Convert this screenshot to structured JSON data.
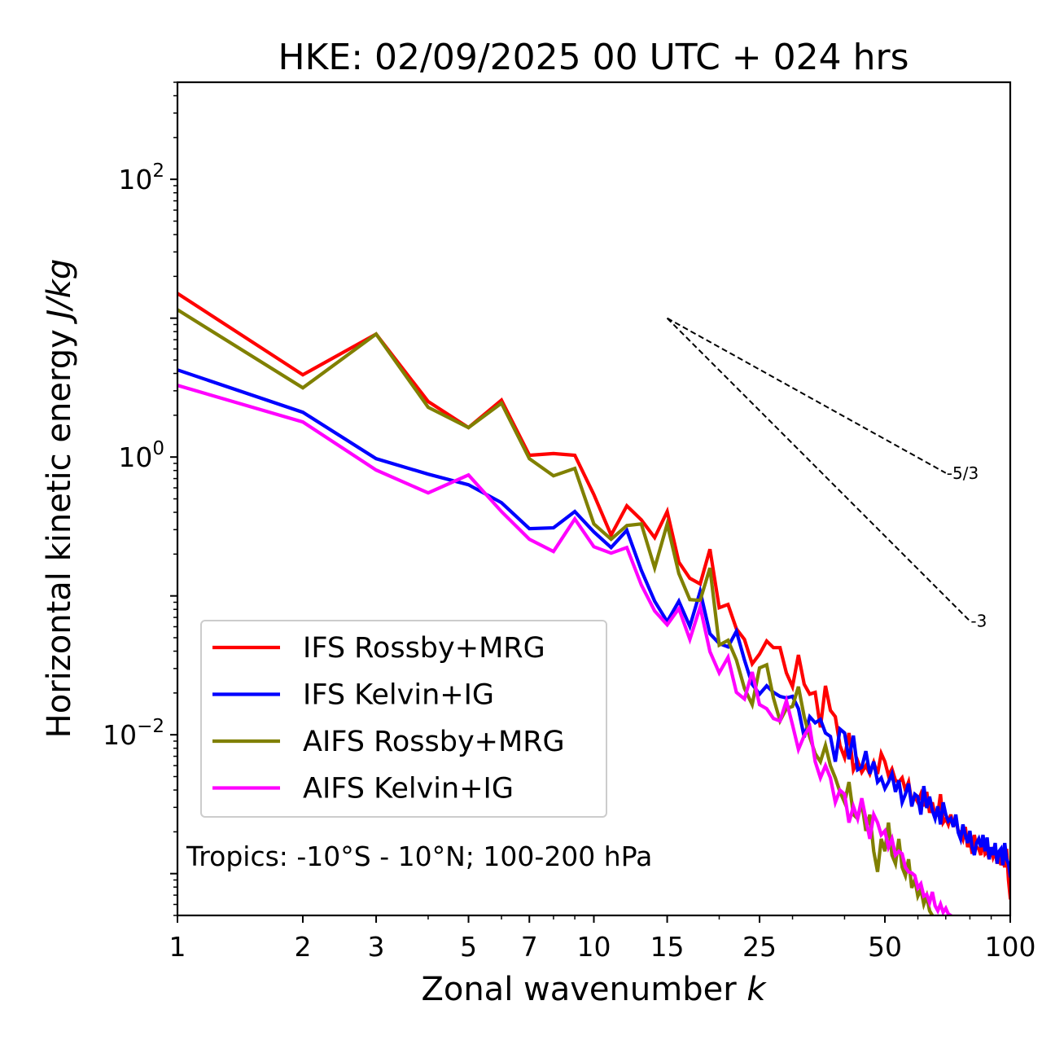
{
  "chart_data": {
    "type": "line",
    "title": "HKE: 02/09/2025 00 UTC + 024 hrs",
    "xlabel": "Zonal wavenumber",
    "xlabel_italic": "k",
    "ylabel": "Horizontal kinetic energy",
    "ylabel_italic": "J/kg",
    "xscale": "log",
    "yscale": "log",
    "xlim": [
      1,
      100
    ],
    "ylim": [
      0.0005,
      500
    ],
    "grid": false,
    "legend_position": "lower-left",
    "x_ticks": [
      1,
      2,
      3,
      5,
      7,
      10,
      15,
      25,
      50,
      100
    ],
    "x_tick_labels": [
      "1",
      "2",
      "3",
      "5",
      "7",
      "10",
      "15",
      "25",
      "50",
      "100"
    ],
    "x_minor_ticks": [
      4,
      6,
      8,
      9,
      20,
      30,
      40,
      60,
      70,
      80,
      90
    ],
    "y_ticks": [
      {
        "value": 100,
        "base": "10",
        "exp": "2"
      },
      {
        "value": 1,
        "base": "10",
        "exp": "0"
      },
      {
        "value": 0.01,
        "base": "10",
        "exp": "−2"
      }
    ],
    "annotation": "Tropics: -10°S - 10°N; 100-200 hPa",
    "reference_lines": [
      {
        "label": "-5/3",
        "slope": -1.6667,
        "k_start": 15,
        "k_end": 70,
        "e_start": 10,
        "style": "dashed",
        "color": "#000000"
      },
      {
        "label": "-3",
        "slope": -3,
        "k_start": 15,
        "k_end": 80,
        "e_start": 10,
        "style": "dashed",
        "color": "#000000"
      }
    ],
    "series": [
      {
        "name": "IFS Rossby+MRG",
        "color": "#ff0000",
        "k_start": 1,
        "values": [
          15.1,
          3.91,
          7.68,
          2.51,
          1.63,
          2.57,
          1.03,
          1.06,
          1.03,
          0.537,
          0.274,
          0.445,
          0.353,
          0.263,
          0.405,
          0.175,
          0.134,
          0.122,
          0.217,
          0.0822,
          0.0868,
          0.0579,
          0.0486,
          0.0324,
          0.0381,
          0.0473,
          0.0424,
          0.0424,
          0.0279,
          0.0222,
          0.0376,
          0.0231,
          0.0196,
          0.0202,
          0.0113,
          0.0225,
          0.015,
          0.0135,
          0.00839,
          0.00685,
          0.0103,
          0.00559,
          0.00649,
          0.00537,
          0.00599,
          0.00523,
          0.00632,
          0.00523,
          0.00733,
          0.0064,
          0.00509,
          0.00567,
          0.00469,
          0.00457,
          0.00489,
          0.00399,
          0.00457,
          0.00326,
          0.00358,
          0.00326,
          0.00373,
          0.00305,
          0.00388,
          0.00274,
          0.00326,
          0.00259,
          0.00266,
          0.00373,
          0.00233,
          0.00249,
          0.00226,
          0.00266,
          0.00217,
          0.00249,
          0.00203,
          0.00198,
          0.00178,
          0.00217,
          0.00155,
          0.00178,
          0.00139,
          0.0019,
          0.00155,
          0.00151,
          0.00136,
          0.00178,
          0.00139,
          0.00145,
          0.00127,
          0.00155,
          0.00132,
          0.00145,
          0.00118,
          0.00136,
          0.00115,
          0.00127,
          0.00111,
          0.00151,
          0.000904,
          0.000671
        ]
      },
      {
        "name": "IFS Kelvin+IG",
        "color": "#0000ff",
        "k_start": 1,
        "values": [
          4.24,
          2.1,
          0.973,
          0.753,
          0.632,
          0.469,
          0.305,
          0.309,
          0.405,
          0.289,
          0.223,
          0.297,
          0.153,
          0.0916,
          0.0653,
          0.0916,
          0.0603,
          0.108,
          0.0534,
          0.0454,
          0.043,
          0.0556,
          0.0346,
          0.0231,
          0.0196,
          0.0225,
          0.0202,
          0.0189,
          0.0184,
          0.0189,
          0.0154,
          0.0096,
          0.0135,
          0.0122,
          0.0129,
          0.0103,
          0.00973,
          0.0064,
          0.011,
          0.0103,
          0.00667,
          0.00986,
          0.00559,
          0.00583,
          0.00763,
          0.00523,
          0.0064,
          0.00457,
          0.00489,
          0.0041,
          0.00457,
          0.00523,
          0.00388,
          0.00469,
          0.00326,
          0.00373,
          0.00445,
          0.00305,
          0.00373,
          0.00358,
          0.00266,
          0.00427,
          0.00297,
          0.00358,
          0.00285,
          0.00249,
          0.00305,
          0.00226,
          0.00326,
          0.00266,
          0.00239,
          0.00249,
          0.00217,
          0.00266,
          0.00198,
          0.00178,
          0.00226,
          0.0019,
          0.00166,
          0.00203,
          0.00155,
          0.00136,
          0.00166,
          0.00178,
          0.00155,
          0.0019,
          0.00145,
          0.00182,
          0.00127,
          0.00155,
          0.00136,
          0.00166,
          0.00118,
          0.00145,
          0.00151,
          0.00115,
          0.00166,
          0.00127,
          0.00118,
          0.000967
        ]
      },
      {
        "name": "AIFS Rossby+MRG",
        "color": "#808000",
        "k_start": 1,
        "values": [
          11.5,
          3.15,
          7.68,
          2.28,
          1.63,
          2.44,
          0.973,
          0.733,
          0.828,
          0.33,
          0.256,
          0.321,
          0.33,
          0.159,
          0.33,
          0.145,
          0.0941,
          0.0928,
          0.159,
          0.0442,
          0.0479,
          0.0346,
          0.0216,
          0.0165,
          0.0303,
          0.0319,
          0.0184,
          0.0126,
          0.0154,
          0.016,
          0.0222,
          0.0135,
          0.0096,
          0.00733,
          0.0064,
          0.00839,
          0.00599,
          0.00489,
          0.00388,
          0.00326,
          0.00457,
          0.00266,
          0.00249,
          0.00326,
          0.00203,
          0.00266,
          0.00145,
          0.00103,
          0.00178,
          0.00145,
          0.00233,
          0.00136,
          0.00118,
          0.00178,
          0.00111,
          0.000967,
          0.00127,
          0.00079,
          0.000904,
          0.00069,
          0.000768,
          0.000603,
          0.00069,
          0.000541,
          0.000499
        ]
      },
      {
        "name": "AIFS Kelvin+IG",
        "color": "#ff00ff",
        "k_start": 1,
        "values": [
          3.28,
          1.79,
          0.806,
          0.552,
          0.743,
          0.405,
          0.256,
          0.209,
          0.358,
          0.226,
          0.203,
          0.223,
          0.12,
          0.0779,
          0.0619,
          0.0811,
          0.0486,
          0.0833,
          0.0397,
          0.0279,
          0.0361,
          0.0202,
          0.0181,
          0.0283,
          0.0165,
          0.0154,
          0.0131,
          0.0126,
          0.0176,
          0.0118,
          0.00784,
          0.00986,
          0.0114,
          0.0064,
          0.00489,
          0.00599,
          0.00489,
          0.00326,
          0.00399,
          0.00373,
          0.00233,
          0.00305,
          0.00249,
          0.00349,
          0.00249,
          0.00178,
          0.00266,
          0.00233,
          0.0019,
          0.00203,
          0.00155,
          0.00178,
          0.00136,
          0.00145,
          0.00139,
          0.00111,
          0.00103,
          0.00101,
          0.000967,
          0.00079,
          0.000845,
          0.00069,
          0.000709,
          0.000619,
          0.000738,
          0.000587,
          0.000541,
          0.000603,
          0.000527,
          0.000563,
          0.000513,
          0.000499
        ]
      }
    ]
  }
}
